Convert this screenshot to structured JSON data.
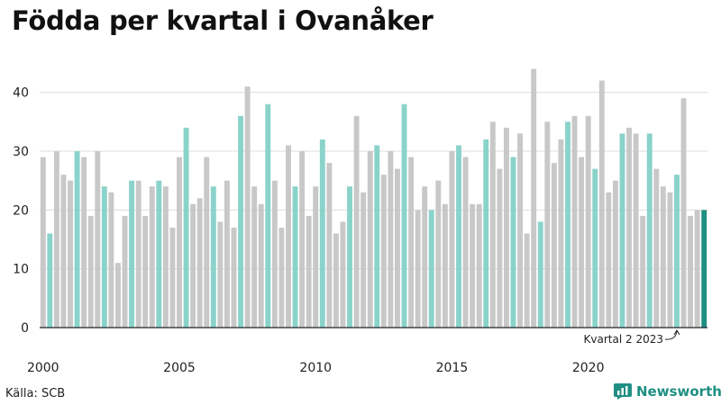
{
  "chart_data": {
    "type": "bar",
    "title": "Födda per kvartal i Ovanåker",
    "source": "Källa: SCB",
    "brand": "Newsworthy",
    "ylim": [
      0,
      45
    ],
    "yticks": [
      0,
      10,
      20,
      30,
      40
    ],
    "grid": true,
    "xticks": [
      {
        "label": "2000",
        "index": 0
      },
      {
        "label": "2005",
        "index": 20
      },
      {
        "label": "2010",
        "index": 40
      },
      {
        "label": "2015",
        "index": 60
      },
      {
        "label": "2020",
        "index": 80
      }
    ],
    "annotation": {
      "text": "Kvartal 2 2023",
      "index": 93
    },
    "colors": {
      "default": "#c8c8c8",
      "highlight": "#8ad3cb",
      "latest": "#1f8f83",
      "grid": "#dddddd"
    },
    "values": [
      29,
      16,
      30,
      26,
      25,
      30,
      29,
      19,
      30,
      24,
      23,
      11,
      19,
      25,
      25,
      19,
      24,
      25,
      24,
      17,
      29,
      34,
      21,
      22,
      29,
      24,
      18,
      25,
      17,
      36,
      41,
      24,
      21,
      38,
      25,
      17,
      31,
      24,
      30,
      19,
      24,
      32,
      28,
      16,
      18,
      24,
      36,
      23,
      30,
      31,
      26,
      30,
      27,
      38,
      29,
      20,
      24,
      20,
      25,
      21,
      30,
      31,
      29,
      21,
      21,
      32,
      35,
      27,
      34,
      29,
      33,
      16,
      44,
      18,
      35,
      28,
      32,
      35,
      36,
      29,
      36,
      27,
      42,
      23,
      25,
      33,
      34,
      33,
      19,
      33,
      27,
      24,
      23,
      26,
      39,
      19,
      20,
      20
    ],
    "highlight_quarter": 2,
    "series": [
      {
        "name": "",
        "values": "values"
      }
    ]
  }
}
